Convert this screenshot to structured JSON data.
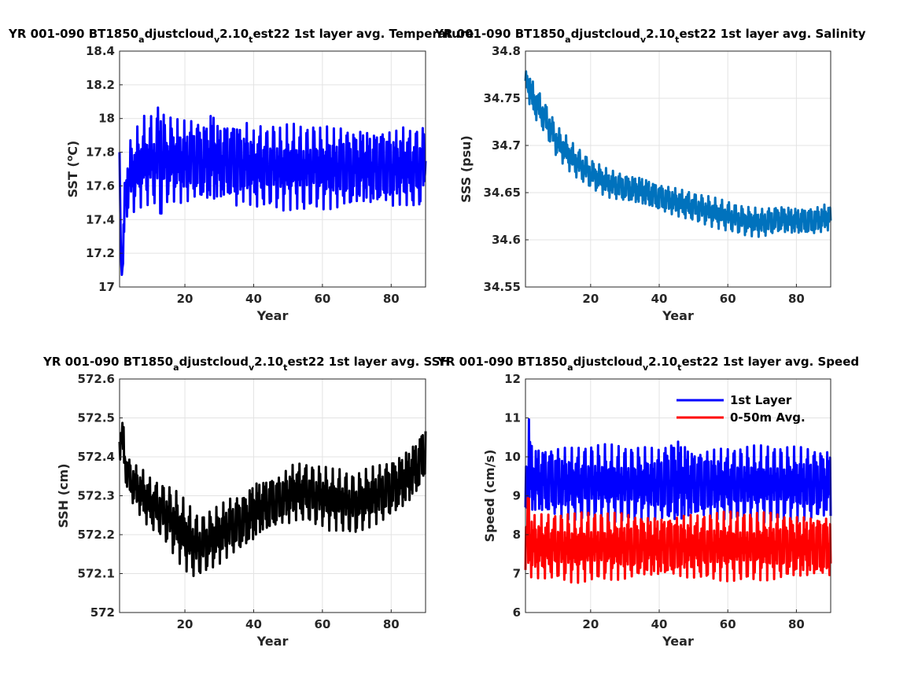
{
  "chart_data": [
    {
      "type": "line",
      "title_main": "YR 001-090 BT1850",
      "title_parts": [
        {
          "text": "a",
          "sub": true
        },
        {
          "text": "djustcloud",
          "sub": false
        },
        {
          "text": "v",
          "sub": true
        },
        {
          "text": "2.10",
          "sub": false
        },
        {
          "text": "t",
          "sub": true
        },
        {
          "text": "est22 1st layer avg. Temperature",
          "sub": false
        }
      ],
      "xlabel": "Year",
      "ylabel": "SST (",
      "ylabel_sup": "o",
      "ylabel_tail": "C)",
      "xlim": [
        1,
        90
      ],
      "ylim": [
        17,
        18.4
      ],
      "xticks": [
        20,
        40,
        60,
        80
      ],
      "xtick_labels": [
        "20",
        "40",
        "60",
        "80"
      ],
      "yticks": [
        17,
        17.2,
        17.4,
        17.6,
        17.8,
        18,
        18.2,
        18.4
      ],
      "ytick_labels": [
        "17",
        "17.2",
        "17.4",
        "17.6",
        "17.8",
        "18",
        "18.2",
        "18.4"
      ],
      "grid": true,
      "series": [
        {
          "color": "#0000ff",
          "x": [
            1,
            1.3,
            1.6,
            2,
            2.5,
            3,
            4,
            5,
            6,
            7,
            8,
            9,
            10,
            11,
            12,
            13,
            14,
            15,
            16,
            18,
            20,
            22,
            24,
            26,
            28,
            30,
            32,
            34,
            35,
            36,
            38,
            40,
            42,
            44,
            46,
            48,
            50,
            52,
            54,
            56,
            58,
            60,
            62,
            64,
            66,
            68,
            70,
            72,
            74,
            76,
            78,
            80,
            82,
            84,
            86,
            88,
            90
          ],
          "y": [
            17.8,
            17.3,
            17.05,
            17.15,
            17.5,
            17.6,
            17.65,
            17.68,
            17.7,
            17.72,
            17.75,
            17.74,
            17.76,
            17.74,
            17.77,
            17.8,
            17.75,
            17.74,
            17.76,
            17.75,
            17.74,
            17.76,
            17.75,
            17.74,
            17.78,
            17.73,
            17.75,
            17.74,
            17.76,
            17.72,
            17.74,
            17.7,
            17.72,
            17.71,
            17.72,
            17.7,
            17.71,
            17.72,
            17.7,
            17.71,
            17.72,
            17.7,
            17.71,
            17.7,
            17.72,
            17.7,
            17.71,
            17.72,
            17.7,
            17.71,
            17.72,
            17.7,
            17.71,
            17.72,
            17.7,
            17.71,
            17.72
          ],
          "amp": [
            0,
            0,
            0,
            0.1,
            0.15,
            0.2,
            0.22,
            0.24,
            0.25,
            0.25,
            0.27,
            0.26,
            0.27,
            0.26,
            0.3,
            0.45,
            0.27,
            0.26,
            0.27,
            0.26,
            0.27,
            0.26,
            0.27,
            0.27,
            0.33,
            0.26,
            0.27,
            0.26,
            0.34,
            0.25,
            0.26,
            0.25,
            0.26,
            0.25,
            0.26,
            0.25,
            0.26,
            0.25,
            0.26,
            0.25,
            0.26,
            0.25,
            0.26,
            0.25,
            0.26,
            0.26,
            0.25,
            0.26,
            0.25,
            0.26,
            0.25,
            0.26,
            0.25,
            0.26,
            0.25,
            0.26,
            0.25
          ]
        }
      ]
    },
    {
      "type": "line",
      "title_main": "YR 001-090 BT1850",
      "title_parts": [
        {
          "text": "a",
          "sub": true
        },
        {
          "text": "djustcloud",
          "sub": false
        },
        {
          "text": "v",
          "sub": true
        },
        {
          "text": "2.10",
          "sub": false
        },
        {
          "text": "t",
          "sub": true
        },
        {
          "text": "est22 1st layer avg. Salinity",
          "sub": false
        }
      ],
      "xlabel": "Year",
      "ylabel": "SSS (psu)",
      "xlim": [
        1,
        90
      ],
      "ylim": [
        34.55,
        34.8
      ],
      "xticks": [
        20,
        40,
        60,
        80
      ],
      "xtick_labels": [
        "20",
        "40",
        "60",
        "80"
      ],
      "yticks": [
        34.55,
        34.6,
        34.65,
        34.7,
        34.75,
        34.8
      ],
      "ytick_labels": [
        "34.55",
        "34.6",
        "34.65",
        "34.7",
        "34.75",
        "34.8"
      ],
      "grid": true,
      "series": [
        {
          "color": "#0072bd",
          "x": [
            1,
            2,
            3,
            5,
            8,
            10,
            15,
            20,
            25,
            30,
            35,
            40,
            45,
            50,
            55,
            60,
            65,
            70,
            75,
            80,
            85,
            90
          ],
          "y": [
            34.77,
            34.765,
            34.75,
            34.74,
            34.72,
            34.705,
            34.685,
            34.67,
            34.66,
            34.655,
            34.652,
            34.645,
            34.64,
            34.635,
            34.63,
            34.625,
            34.62,
            34.618,
            34.622,
            34.62,
            34.62,
            34.625
          ],
          "amp": [
            0.008,
            0.02,
            0.02,
            0.018,
            0.018,
            0.017,
            0.017,
            0.016,
            0.016,
            0.016,
            0.017,
            0.016,
            0.016,
            0.016,
            0.016,
            0.016,
            0.016,
            0.016,
            0.016,
            0.016,
            0.016,
            0.016
          ]
        }
      ]
    },
    {
      "type": "line",
      "title_main": "YR 001-090 BT1850",
      "title_parts": [
        {
          "text": "a",
          "sub": true
        },
        {
          "text": "djustcloud",
          "sub": false
        },
        {
          "text": "v",
          "sub": true
        },
        {
          "text": "2.10",
          "sub": false
        },
        {
          "text": "t",
          "sub": true
        },
        {
          "text": "est22 1st layer avg. SSH",
          "sub": false
        }
      ],
      "xlabel": "Year",
      "ylabel": "SSH (cm)",
      "xlim": [
        1,
        90
      ],
      "ylim": [
        572,
        572.6
      ],
      "xticks": [
        20,
        40,
        60,
        80
      ],
      "xtick_labels": [
        "20",
        "40",
        "60",
        "80"
      ],
      "yticks": [
        572,
        572.1,
        572.2,
        572.3,
        572.4,
        572.5,
        572.6
      ],
      "ytick_labels": [
        "572",
        "572.1",
        "572.2",
        "572.3",
        "572.4",
        "572.5",
        "572.6"
      ],
      "grid": true,
      "series": [
        {
          "color": "#000000",
          "x": [
            1,
            2,
            3,
            5,
            8,
            10,
            12,
            15,
            18,
            20,
            22,
            24,
            26,
            28,
            30,
            33,
            36,
            38,
            40,
            42,
            45,
            48,
            50,
            52,
            55,
            58,
            60,
            62,
            65,
            68,
            70,
            72,
            75,
            78,
            80,
            82,
            85,
            88,
            90
          ],
          "y": [
            572.42,
            572.45,
            572.36,
            572.33,
            572.3,
            572.28,
            572.27,
            572.25,
            572.22,
            572.2,
            572.18,
            572.17,
            572.18,
            572.19,
            572.2,
            572.22,
            572.23,
            572.24,
            572.26,
            572.27,
            572.28,
            572.29,
            572.3,
            572.31,
            572.31,
            572.3,
            572.3,
            572.29,
            572.29,
            572.28,
            572.28,
            572.29,
            572.3,
            572.31,
            572.32,
            572.33,
            572.35,
            572.38,
            572.42
          ],
          "amp": [
            0.04,
            0.06,
            0.05,
            0.06,
            0.07,
            0.07,
            0.07,
            0.08,
            0.09,
            0.09,
            0.09,
            0.08,
            0.08,
            0.08,
            0.08,
            0.08,
            0.08,
            0.08,
            0.09,
            0.08,
            0.08,
            0.07,
            0.08,
            0.08,
            0.08,
            0.08,
            0.08,
            0.08,
            0.08,
            0.08,
            0.08,
            0.08,
            0.08,
            0.08,
            0.08,
            0.08,
            0.08,
            0.08,
            0.08
          ]
        }
      ]
    },
    {
      "type": "line",
      "title_main": "YR 001-090 BT1850",
      "title_parts": [
        {
          "text": "a",
          "sub": true
        },
        {
          "text": "djustcloud",
          "sub": false
        },
        {
          "text": "v",
          "sub": true
        },
        {
          "text": "2.10",
          "sub": false
        },
        {
          "text": "t",
          "sub": true
        },
        {
          "text": "est22 1st layer avg. Speed",
          "sub": false
        }
      ],
      "xlabel": "Year",
      "ylabel": "Speed (cm/s)",
      "xlim": [
        1,
        90
      ],
      "ylim": [
        6,
        12
      ],
      "xticks": [
        20,
        40,
        60,
        80
      ],
      "xtick_labels": [
        "20",
        "40",
        "60",
        "80"
      ],
      "yticks": [
        6,
        7,
        8,
        9,
        10,
        11,
        12
      ],
      "ytick_labels": [
        "6",
        "7",
        "8",
        "9",
        "10",
        "11",
        "12"
      ],
      "grid": true,
      "legend_position": "top-right",
      "series": [
        {
          "name": "1st Layer",
          "color": "#0000ff",
          "x": [
            1,
            2,
            3,
            5,
            10,
            15,
            20,
            30,
            40,
            45,
            50,
            60,
            70,
            80,
            90
          ],
          "y": [
            9.3,
            9.6,
            9.4,
            9.4,
            9.35,
            9.3,
            9.35,
            9.3,
            9.3,
            9.4,
            9.3,
            9.3,
            9.3,
            9.3,
            9.3
          ],
          "amp": [
            0.8,
            1.8,
            1.0,
            1.0,
            1.0,
            1.0,
            1.0,
            1.0,
            1.0,
            1.3,
            1.0,
            1.0,
            1.0,
            1.0,
            1.0
          ]
        },
        {
          "name": "0-50m Avg.",
          "color": "#ff0000",
          "x": [
            1,
            2,
            3,
            5,
            10,
            15,
            20,
            30,
            40,
            50,
            60,
            70,
            80,
            90
          ],
          "y": [
            7.6,
            8.1,
            7.7,
            7.7,
            7.7,
            7.65,
            7.7,
            7.7,
            7.7,
            7.7,
            7.7,
            7.7,
            7.7,
            7.7
          ],
          "amp": [
            0.8,
            1.4,
            0.9,
            0.9,
            0.9,
            0.9,
            0.9,
            0.9,
            0.9,
            0.9,
            0.9,
            0.9,
            0.9,
            0.9
          ]
        }
      ]
    }
  ]
}
